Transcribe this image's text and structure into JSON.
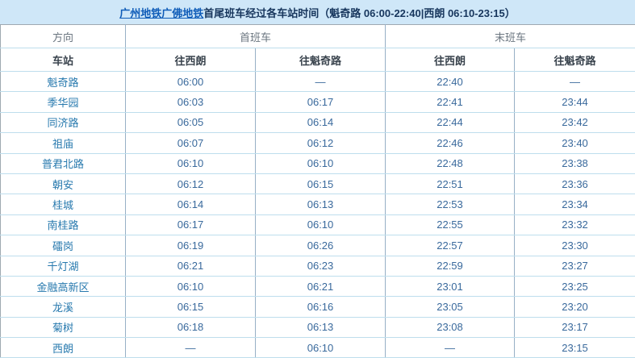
{
  "page": {
    "title_link": "广州地铁广佛地铁",
    "title_text": "首尾班车经过各车站时间（魁奇路 06:00-22:40|西朗 06:10-23:15）"
  },
  "table": {
    "headers": {
      "direction": "方向",
      "first_train": "首班车",
      "last_train": "末班车",
      "station": "车站",
      "to_xilang": "往西朗",
      "to_kuiqilu": "往魁奇路"
    },
    "rows": [
      {
        "station": "魁奇路",
        "first_xilang": "06:00",
        "first_kuiqilu": "—",
        "last_xilang": "22:40",
        "last_kuiqilu": "—"
      },
      {
        "station": "季华园",
        "first_xilang": "06:03",
        "first_kuiqilu": "06:17",
        "last_xilang": "22:41",
        "last_kuiqilu": "23:44"
      },
      {
        "station": "同济路",
        "first_xilang": "06:05",
        "first_kuiqilu": "06:14",
        "last_xilang": "22:44",
        "last_kuiqilu": "23:42"
      },
      {
        "station": "祖庙",
        "first_xilang": "06:07",
        "first_kuiqilu": "06:12",
        "last_xilang": "22:46",
        "last_kuiqilu": "23:40"
      },
      {
        "station": "普君北路",
        "first_xilang": "06:10",
        "first_kuiqilu": "06:10",
        "last_xilang": "22:48",
        "last_kuiqilu": "23:38"
      },
      {
        "station": "朝安",
        "first_xilang": "06:12",
        "first_kuiqilu": "06:15",
        "last_xilang": "22:51",
        "last_kuiqilu": "23:36"
      },
      {
        "station": "桂城",
        "first_xilang": "06:14",
        "first_kuiqilu": "06:13",
        "last_xilang": "22:53",
        "last_kuiqilu": "23:34"
      },
      {
        "station": "南桂路",
        "first_xilang": "06:17",
        "first_kuiqilu": "06:10",
        "last_xilang": "22:55",
        "last_kuiqilu": "23:32"
      },
      {
        "station": "礌岗",
        "first_xilang": "06:19",
        "first_kuiqilu": "06:26",
        "last_xilang": "22:57",
        "last_kuiqilu": "23:30"
      },
      {
        "station": "千灯湖",
        "first_xilang": "06:21",
        "first_kuiqilu": "06:23",
        "last_xilang": "22:59",
        "last_kuiqilu": "23:27"
      },
      {
        "station": "金融高新区",
        "first_xilang": "06:10",
        "first_kuiqilu": "06:21",
        "last_xilang": "23:01",
        "last_kuiqilu": "23:25"
      },
      {
        "station": "龙溪",
        "first_xilang": "06:15",
        "first_kuiqilu": "06:16",
        "last_xilang": "23:05",
        "last_kuiqilu": "23:20"
      },
      {
        "station": "菊树",
        "first_xilang": "06:18",
        "first_kuiqilu": "06:13",
        "last_xilang": "23:08",
        "last_kuiqilu": "23:17"
      },
      {
        "station": "西朗",
        "first_xilang": "—",
        "first_kuiqilu": "06:10",
        "last_xilang": "—",
        "last_kuiqilu": "23:15"
      }
    ]
  },
  "colors": {
    "title_band_bg": "#cfe7f8",
    "title_link": "#0f5cb8",
    "title_text": "#17365d",
    "station_text": "#2779ae",
    "time_text": "#39699c",
    "border_horizontal": "#bedeed",
    "border_vertical": "#97b0c6"
  }
}
